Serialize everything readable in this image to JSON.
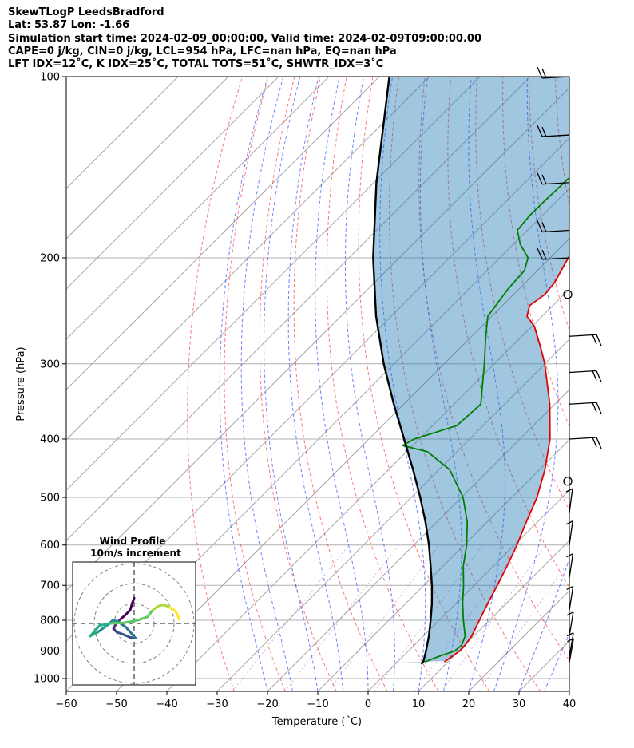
{
  "header": {
    "line1": "SkewTLogP LeedsBradford",
    "line2": "Lat: 53.87   Lon: -1.66",
    "line3": "Simulation start time: 2024-02-09_00:00:00, Valid time: 2024-02-09T09:00:00.00",
    "line4": "CAPE=0 j/kg, CIN=0 j/kg, LCL=954 hPa, LFC=nan hPa, EQ=nan hPa",
    "line5": "LFT IDX=12˚C, K IDX=25˚C, TOTAL TOTS=51˚C, SHWTR_IDX=3˚C"
  },
  "chart_data": {
    "type": "skew-t",
    "xlabel": "Temperature (˚C)",
    "ylabel": "Pressure (hPa)",
    "xlim": [
      -60,
      40
    ],
    "ylim": [
      1050,
      100
    ],
    "x_ticks": [
      -60,
      -50,
      -40,
      -30,
      -20,
      -10,
      0,
      10,
      20,
      30,
      40
    ],
    "x_tick_labels": [
      "−60",
      "−50",
      "−40",
      "−30",
      "−20",
      "−10",
      "0",
      "10",
      "20",
      "30",
      "40"
    ],
    "y_ticks": [
      1000,
      900,
      800,
      700,
      600,
      500,
      400,
      300,
      200,
      100
    ],
    "y_tick_labels": [
      "1000",
      "900",
      "800",
      "700",
      "600",
      "500",
      "400",
      "300",
      "200",
      "100"
    ],
    "grid": true,
    "series": [
      {
        "name": "temperature",
        "color": "#e00000",
        "points": [
          [
            938,
            9.3
          ],
          [
            900,
            10.2
          ],
          [
            880,
            10.1
          ],
          [
            850,
            9.6
          ],
          [
            800,
            8.0
          ],
          [
            750,
            6.3
          ],
          [
            700,
            4.6
          ],
          [
            650,
            2.7
          ],
          [
            600,
            0.5
          ],
          [
            550,
            -2.2
          ],
          [
            500,
            -5.0
          ],
          [
            450,
            -8.9
          ],
          [
            400,
            -14.0
          ],
          [
            350,
            -21.0
          ],
          [
            300,
            -30.0
          ],
          [
            280,
            -34.5
          ],
          [
            260,
            -39.5
          ],
          [
            250,
            -43.0
          ],
          [
            240,
            -44.6
          ],
          [
            230,
            -43.8
          ],
          [
            220,
            -44.2
          ],
          [
            200,
            -46.4
          ],
          [
            180,
            -48.6
          ],
          [
            160,
            -51.8
          ],
          [
            150,
            -54.0
          ],
          [
            140,
            -56.2
          ],
          [
            120,
            -59.2
          ],
          [
            110,
            -59.6
          ],
          [
            100,
            -60.6
          ]
        ]
      },
      {
        "name": "dewpoint",
        "color": "#008000",
        "points": [
          [
            938,
            5.4
          ],
          [
            920,
            7.0
          ],
          [
            900,
            9.2
          ],
          [
            880,
            9.4
          ],
          [
            850,
            8.3
          ],
          [
            800,
            4.8
          ],
          [
            750,
            1.3
          ],
          [
            700,
            -2.1
          ],
          [
            650,
            -6.0
          ],
          [
            600,
            -9.5
          ],
          [
            550,
            -13.9
          ],
          [
            500,
            -19.7
          ],
          [
            450,
            -27.8
          ],
          [
            420,
            -35.8
          ],
          [
            410,
            -42.0
          ],
          [
            400,
            -41.0
          ],
          [
            380,
            -35.2
          ],
          [
            350,
            -34.7
          ],
          [
            330,
            -37.5
          ],
          [
            300,
            -42.0
          ],
          [
            270,
            -47.2
          ],
          [
            250,
            -50.8
          ],
          [
            225,
            -52.2
          ],
          [
            210,
            -52.6
          ],
          [
            200,
            -54.4
          ],
          [
            190,
            -58.6
          ],
          [
            180,
            -62.0
          ],
          [
            170,
            -62.5
          ],
          [
            160,
            -62.4
          ],
          [
            150,
            -62.2
          ],
          [
            130,
            -61.8
          ],
          [
            110,
            -61.8
          ],
          [
            100,
            -62.2
          ]
        ]
      },
      {
        "name": "parcel",
        "color": "#000000",
        "points": [
          [
            945,
            5.0
          ],
          [
            940,
            5.2
          ],
          [
            900,
            3.5
          ],
          [
            850,
            1.1
          ],
          [
            800,
            -1.7
          ],
          [
            750,
            -4.8
          ],
          [
            700,
            -8.4
          ],
          [
            650,
            -12.5
          ],
          [
            600,
            -17.0
          ],
          [
            550,
            -22.2
          ],
          [
            500,
            -28.2
          ],
          [
            450,
            -35.1
          ],
          [
            400,
            -43.0
          ],
          [
            350,
            -52.0
          ],
          [
            300,
            -62.0
          ],
          [
            250,
            -73.0
          ],
          [
            200,
            -85.2
          ],
          [
            150,
            -99.5
          ],
          [
            100,
            -118.0
          ]
        ]
      }
    ],
    "wind_barbs": [
      {
        "p": 100,
        "speed": "approx 25 kt"
      },
      {
        "p": 125,
        "speed": "approx 25 kt"
      },
      {
        "p": 150,
        "speed": "approx 25 kt"
      },
      {
        "p": 180,
        "speed": "approx 25 kt"
      },
      {
        "p": 200,
        "speed": "approx 15 kt"
      },
      {
        "p": 230,
        "speed": "calm"
      },
      {
        "p": 270,
        "speed": "approx 25 kt"
      },
      {
        "p": 310,
        "speed": "approx 25 kt"
      },
      {
        "p": 350,
        "speed": "approx 25 kt"
      },
      {
        "p": 400,
        "speed": "approx 25 kt"
      },
      {
        "p": 470,
        "speed": "calm"
      },
      {
        "p": 530,
        "speed": "approx 5 kt"
      },
      {
        "p": 600,
        "speed": "approx 10 kt"
      },
      {
        "p": 680,
        "speed": "approx 15 kt"
      },
      {
        "p": 770,
        "speed": "approx 15 kt"
      },
      {
        "p": 850,
        "speed": "approx 10 kt"
      },
      {
        "p": 920,
        "speed": "approx 10 kt"
      },
      {
        "p": 940,
        "speed": "approx 15 kt"
      }
    ],
    "hodograph": {
      "title": "Wind Profile",
      "subtitle": "10m/s increment",
      "rings": [
        10,
        20,
        30
      ],
      "points": [
        [
          0,
          3.8
        ],
        [
          -0.3,
          3.0
        ],
        [
          -0.6,
          2.0
        ],
        [
          -1.4,
          1.2
        ],
        [
          -2.2,
          0.5
        ],
        [
          -2.8,
          -0.2
        ],
        [
          -3.1,
          -0.8
        ],
        [
          -2.6,
          -1.3
        ],
        [
          -1.5,
          -1.7
        ],
        [
          -0.6,
          -2.1
        ],
        [
          0.2,
          -2.2
        ],
        [
          -0.4,
          -1.5
        ],
        [
          -1.2,
          -0.6
        ],
        [
          -1.9,
          -0.1
        ],
        [
          -2.5,
          0.3
        ],
        [
          -3.2,
          0.5
        ],
        [
          -4.2,
          -0.4
        ],
        [
          -5.6,
          -1.4
        ],
        [
          -6.6,
          -1.9
        ],
        [
          -5.2,
          -0.3
        ],
        [
          -3.5,
          0.0
        ],
        [
          -1.5,
          0.1
        ],
        [
          0.6,
          0.5
        ],
        [
          2.0,
          1.0
        ],
        [
          2.8,
          2.0
        ],
        [
          3.6,
          2.6
        ],
        [
          4.5,
          2.8
        ],
        [
          5.4,
          2.4
        ],
        [
          6.2,
          1.9
        ],
        [
          6.6,
          1.1
        ],
        [
          6.8,
          0.6
        ]
      ]
    }
  }
}
